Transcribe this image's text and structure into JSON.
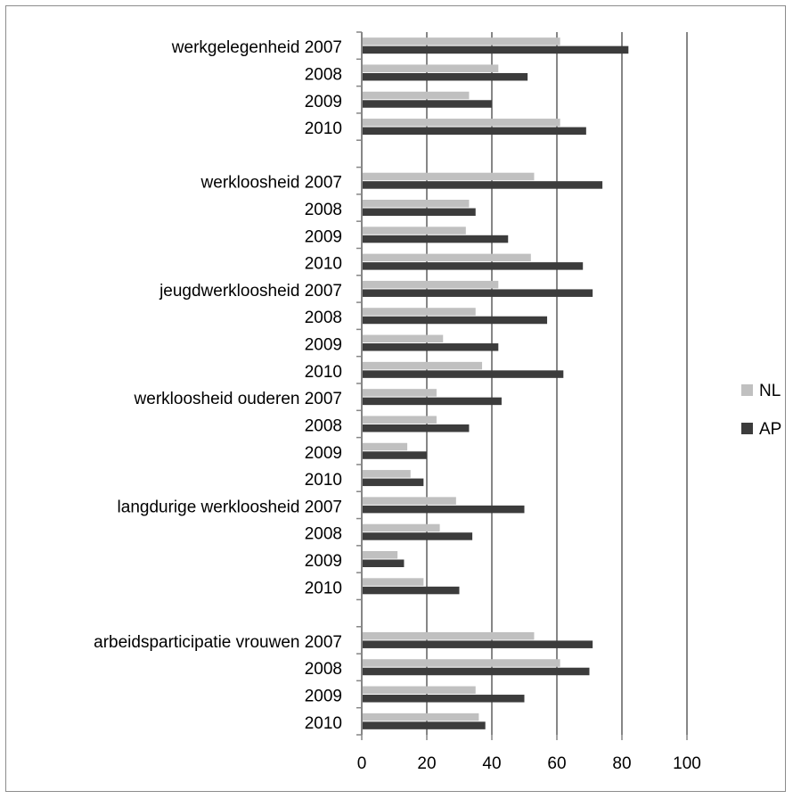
{
  "chart_data": {
    "type": "bar",
    "orientation": "horizontal",
    "title": "",
    "xlabel": "",
    "ylabel": "",
    "xlim": [
      0,
      100
    ],
    "xticks": [
      0,
      20,
      40,
      60,
      80,
      100
    ],
    "grid": true,
    "legend_position": "right",
    "categories": [
      "werkgelegenheid  2007",
      "2008",
      "2009",
      "2010",
      "",
      "werkloosheid  2007",
      "2008",
      "2009",
      "2010",
      "jeugdwerkloosheid  2007",
      "2008",
      "2009",
      "2010",
      "werkloosheid ouderen  2007",
      "2008",
      "2009",
      "2010",
      "langdurige werkloosheid  2007",
      "2008",
      "2009",
      "2010",
      "",
      "arbeidsparticipatie vrouwen  2007",
      "2008",
      "2009",
      "2010"
    ],
    "series": [
      {
        "name": "NL",
        "color": "#c0c0c0",
        "values": [
          61,
          42,
          33,
          61,
          null,
          53,
          33,
          32,
          52,
          42,
          35,
          25,
          37,
          23,
          23,
          14,
          15,
          29,
          24,
          11,
          19,
          null,
          53,
          61,
          35,
          36
        ]
      },
      {
        "name": "AP",
        "color": "#3c3c3c",
        "values": [
          82,
          51,
          40,
          69,
          null,
          74,
          35,
          45,
          68,
          71,
          57,
          42,
          62,
          43,
          33,
          20,
          19,
          50,
          34,
          13,
          30,
          null,
          71,
          70,
          50,
          38
        ]
      }
    ]
  }
}
